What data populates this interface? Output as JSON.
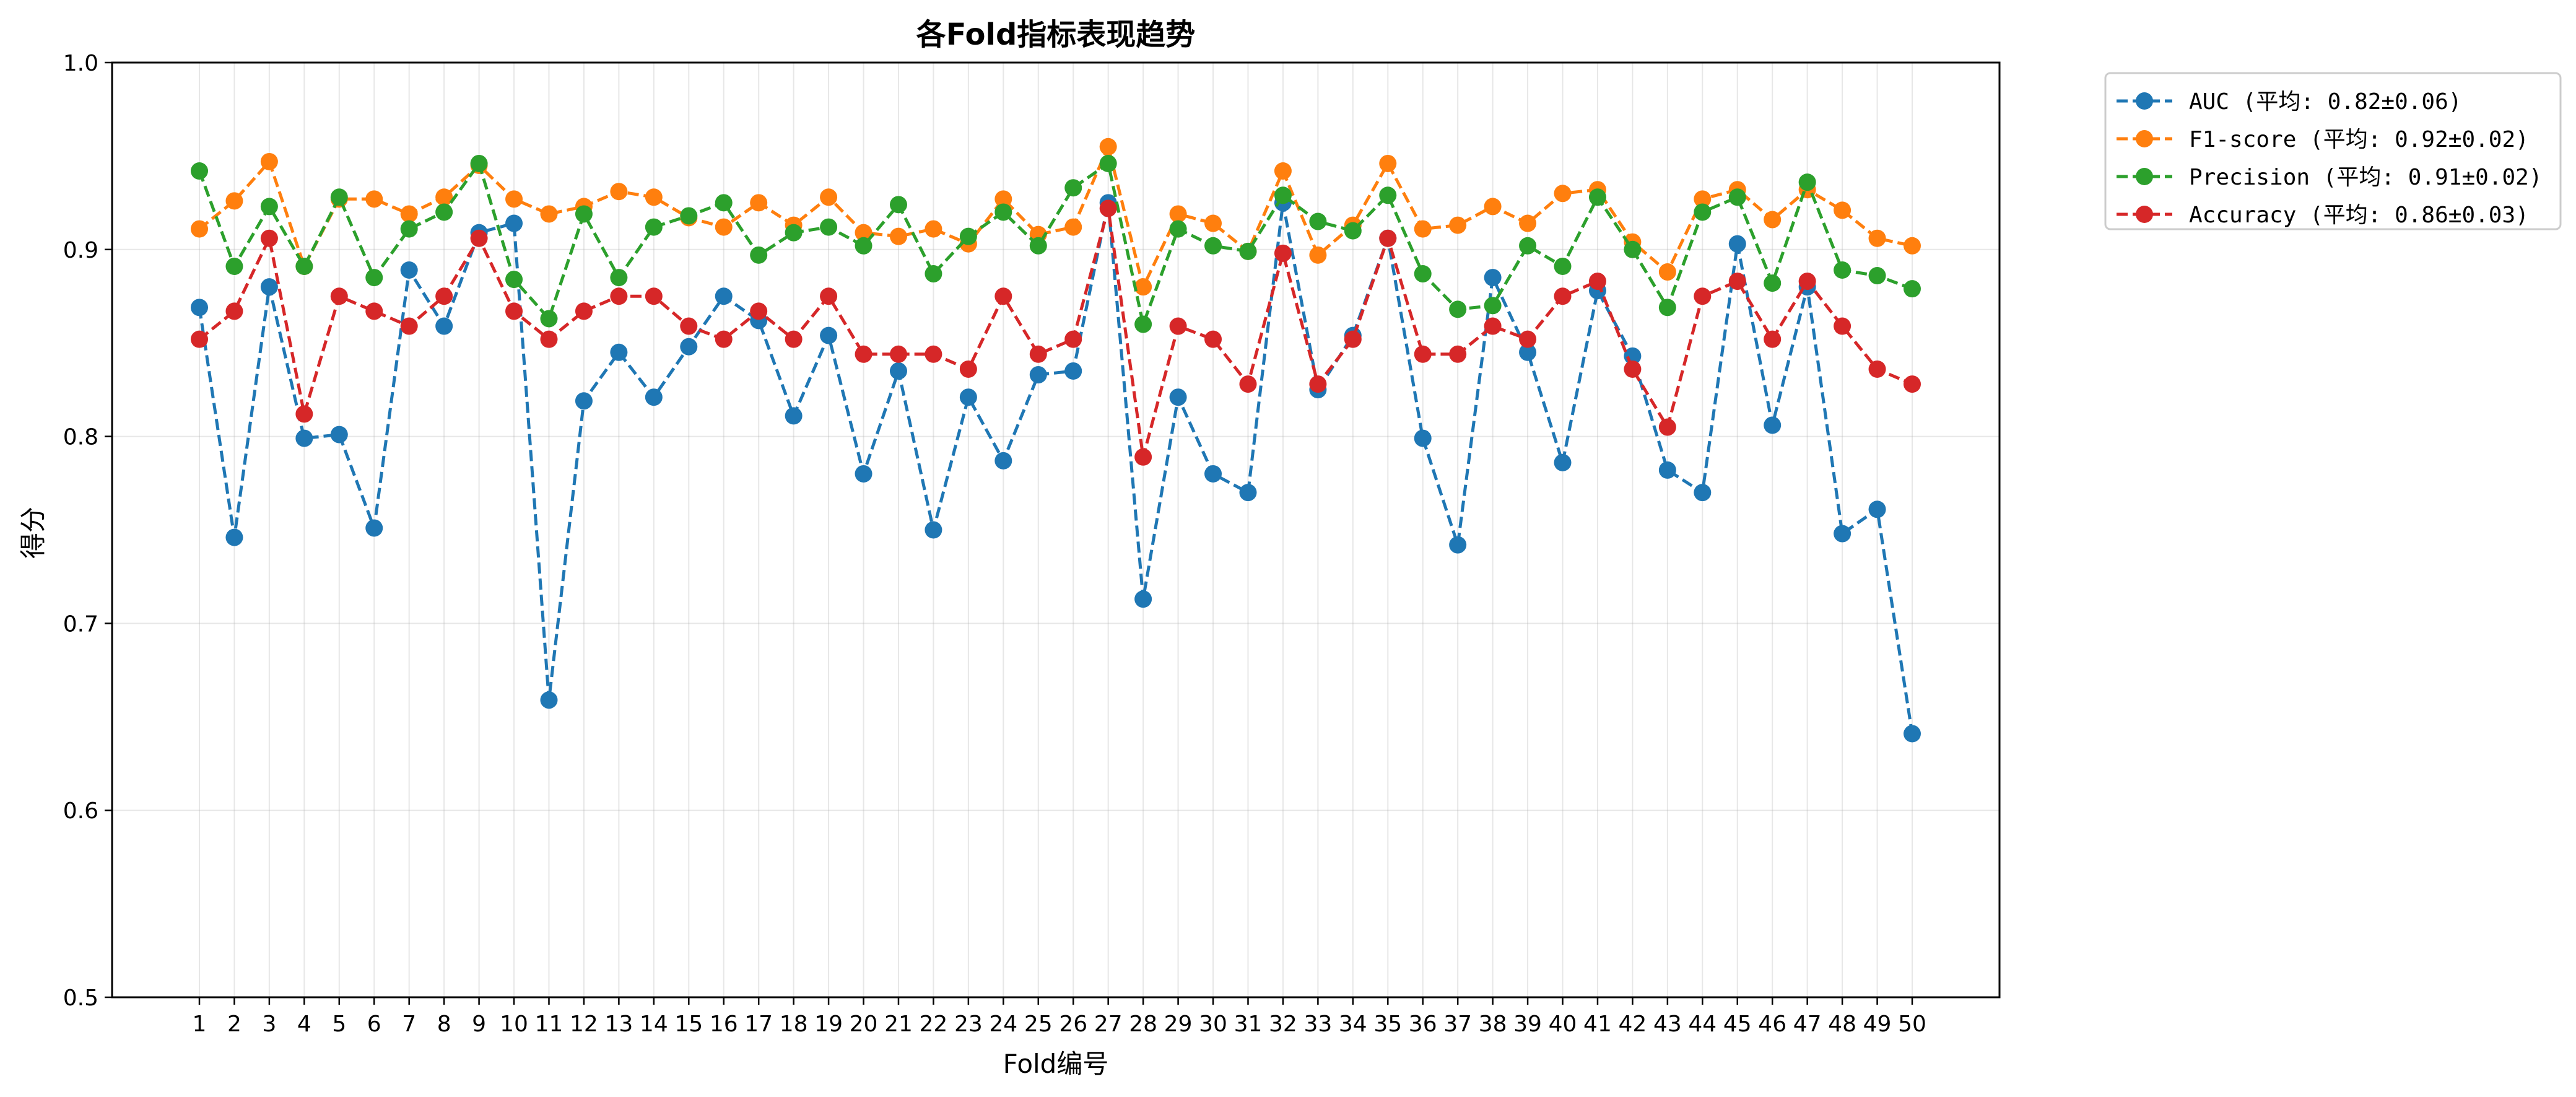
{
  "chart_data": {
    "type": "line",
    "title": "各Fold指标表现趋势",
    "xlabel": "Fold编号",
    "ylabel": "得分",
    "ylim": [
      0.5,
      1.0
    ],
    "yticks": [
      "0.5",
      "0.6",
      "0.7",
      "0.8",
      "0.9",
      "1.0"
    ],
    "grid": true,
    "legend_position": "outside-top-right",
    "line_style": "dashed",
    "marker": "circle",
    "categories": [
      "1",
      "2",
      "3",
      "4",
      "5",
      "6",
      "7",
      "8",
      "9",
      "10",
      "11",
      "12",
      "13",
      "14",
      "15",
      "16",
      "17",
      "18",
      "19",
      "20",
      "21",
      "22",
      "23",
      "24",
      "25",
      "26",
      "27",
      "28",
      "29",
      "30",
      "31",
      "32",
      "33",
      "34",
      "35",
      "36",
      "37",
      "38",
      "39",
      "40",
      "41",
      "42",
      "43",
      "44",
      "45",
      "46",
      "47",
      "48",
      "49",
      "50"
    ],
    "series": [
      {
        "name": "AUC (平均: 0.82±0.06)",
        "color": "#1f77b4",
        "values": [
          0.869,
          0.746,
          0.88,
          0.799,
          0.801,
          0.751,
          0.889,
          0.859,
          0.909,
          0.914,
          0.659,
          0.819,
          0.845,
          0.821,
          0.848,
          0.875,
          0.862,
          0.811,
          0.854,
          0.78,
          0.835,
          0.75,
          0.821,
          0.787,
          0.833,
          0.835,
          0.925,
          0.713,
          0.821,
          0.78,
          0.77,
          0.925,
          0.825,
          0.854,
          0.906,
          0.799,
          0.742,
          0.885,
          0.845,
          0.786,
          0.878,
          0.843,
          0.782,
          0.77,
          0.903,
          0.806,
          0.88,
          0.748,
          0.761,
          0.641
        ]
      },
      {
        "name": "F1-score (平均: 0.92±0.02)",
        "color": "#ff7f0e",
        "values": [
          0.911,
          0.926,
          0.947,
          0.891,
          0.927,
          0.927,
          0.919,
          0.928,
          0.945,
          0.927,
          0.919,
          0.923,
          0.931,
          0.928,
          0.917,
          0.912,
          0.925,
          0.913,
          0.928,
          0.909,
          0.907,
          0.911,
          0.903,
          0.927,
          0.908,
          0.912,
          0.955,
          0.88,
          0.919,
          0.914,
          0.899,
          0.942,
          0.897,
          0.913,
          0.946,
          0.911,
          0.913,
          0.923,
          0.914,
          0.93,
          0.932,
          0.904,
          0.888,
          0.927,
          0.932,
          0.916,
          0.932,
          0.921,
          0.906,
          0.902
        ]
      },
      {
        "name": "Precision (平均: 0.91±0.02)",
        "color": "#2ca02c",
        "values": [
          0.942,
          0.891,
          0.923,
          0.891,
          0.928,
          0.885,
          0.911,
          0.92,
          0.946,
          0.884,
          0.863,
          0.919,
          0.885,
          0.912,
          0.918,
          0.925,
          0.897,
          0.909,
          0.912,
          0.902,
          0.924,
          0.887,
          0.907,
          0.92,
          0.902,
          0.933,
          0.946,
          0.86,
          0.911,
          0.902,
          0.899,
          0.929,
          0.915,
          0.91,
          0.929,
          0.887,
          0.868,
          0.87,
          0.902,
          0.891,
          0.928,
          0.9,
          0.869,
          0.92,
          0.928,
          0.882,
          0.936,
          0.889,
          0.886,
          0.879
        ]
      },
      {
        "name": "Accuracy (平均: 0.86±0.03)",
        "color": "#d62728",
        "values": [
          0.852,
          0.867,
          0.906,
          0.812,
          0.875,
          0.867,
          0.859,
          0.875,
          0.906,
          0.867,
          0.852,
          0.867,
          0.875,
          0.875,
          0.859,
          0.852,
          0.867,
          0.852,
          0.875,
          0.844,
          0.844,
          0.844,
          0.836,
          0.875,
          0.844,
          0.852,
          0.922,
          0.789,
          0.859,
          0.852,
          0.828,
          0.898,
          0.828,
          0.852,
          0.906,
          0.844,
          0.844,
          0.859,
          0.852,
          0.875,
          0.883,
          0.836,
          0.805,
          0.875,
          0.883,
          0.852,
          0.883,
          0.859,
          0.836,
          0.828
        ]
      }
    ]
  }
}
